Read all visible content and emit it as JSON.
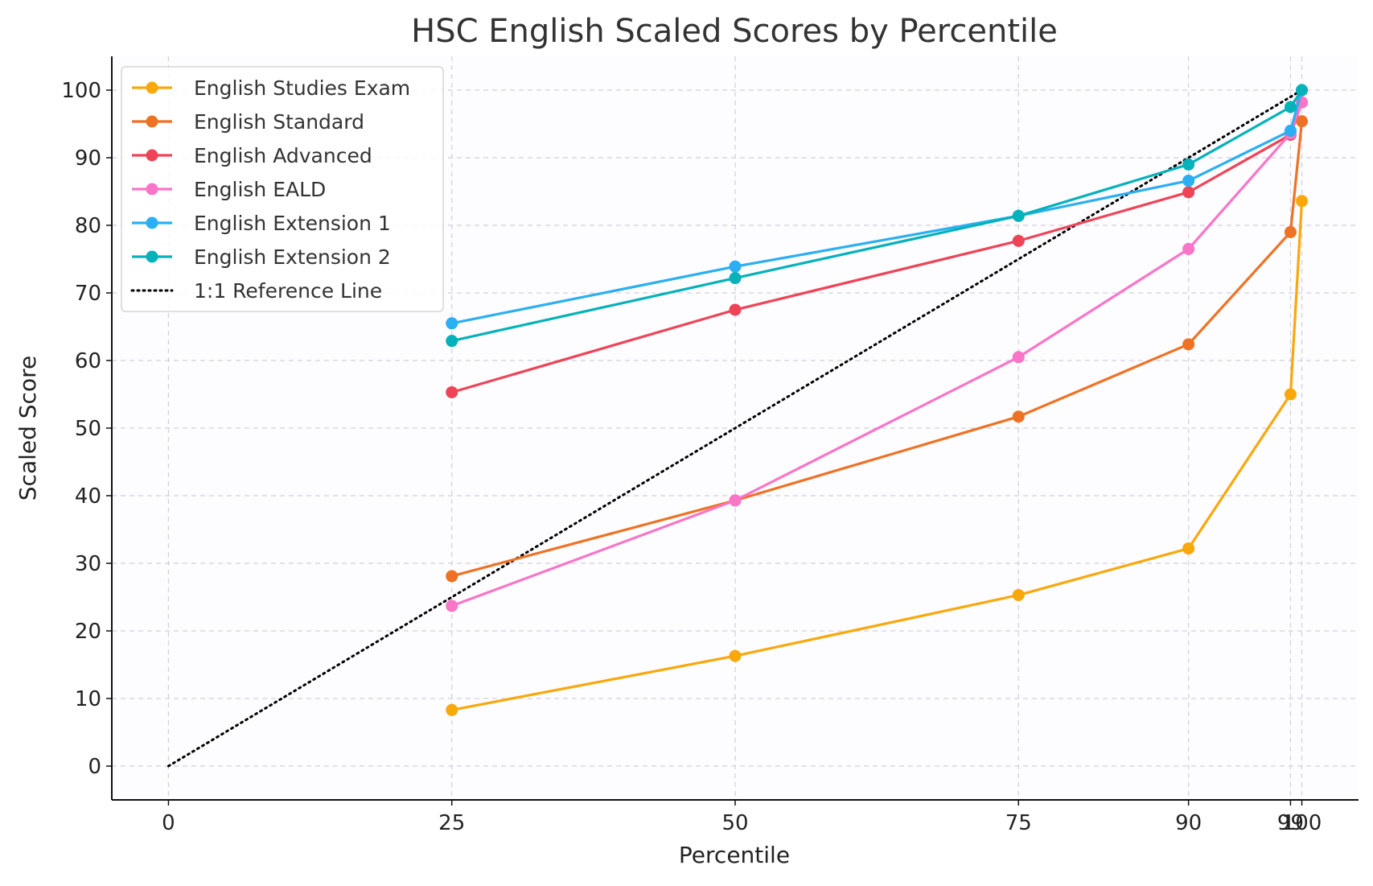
{
  "chart_data": {
    "type": "line",
    "title": "HSC English Scaled Scores by Percentile",
    "xlabel": "Percentile",
    "ylabel": "Scaled Score",
    "x": [
      25,
      50,
      75,
      90,
      99,
      100
    ],
    "xticks": [
      0,
      25,
      50,
      75,
      90,
      99,
      100
    ],
    "yticks": [
      0,
      10,
      20,
      30,
      40,
      50,
      60,
      70,
      80,
      90,
      100
    ],
    "xlim": [
      -5,
      105
    ],
    "ylim": [
      -5,
      105
    ],
    "grid": true,
    "legend_position": "top-left",
    "series": [
      {
        "name": "English Studies Exam",
        "color": "#F9A80B",
        "values": [
          8.3,
          16.3,
          25.3,
          32.2,
          55.0,
          83.6
        ]
      },
      {
        "name": "English Standard",
        "color": "#EE7224",
        "values": [
          28.1,
          39.3,
          51.7,
          62.4,
          79.0,
          95.4
        ]
      },
      {
        "name": "English Advanced",
        "color": "#EE4458",
        "values": [
          55.3,
          67.5,
          77.7,
          84.9,
          93.4,
          98.2
        ]
      },
      {
        "name": "English EALD",
        "color": "#F875C7",
        "values": [
          23.7,
          39.3,
          60.5,
          76.5,
          93.6,
          98.2
        ]
      },
      {
        "name": "English Extension 1",
        "color": "#2BAFF2",
        "values": [
          65.5,
          73.9,
          81.4,
          86.6,
          94.0,
          100.0
        ]
      },
      {
        "name": "English Extension 2",
        "color": "#05B2BA",
        "values": [
          62.9,
          72.2,
          81.4,
          89.0,
          97.5,
          100.0
        ]
      }
    ],
    "reference_line": {
      "name": "1:1 Reference Line",
      "color": "#000000",
      "x": [
        0,
        100
      ],
      "y": [
        0,
        100
      ]
    }
  }
}
